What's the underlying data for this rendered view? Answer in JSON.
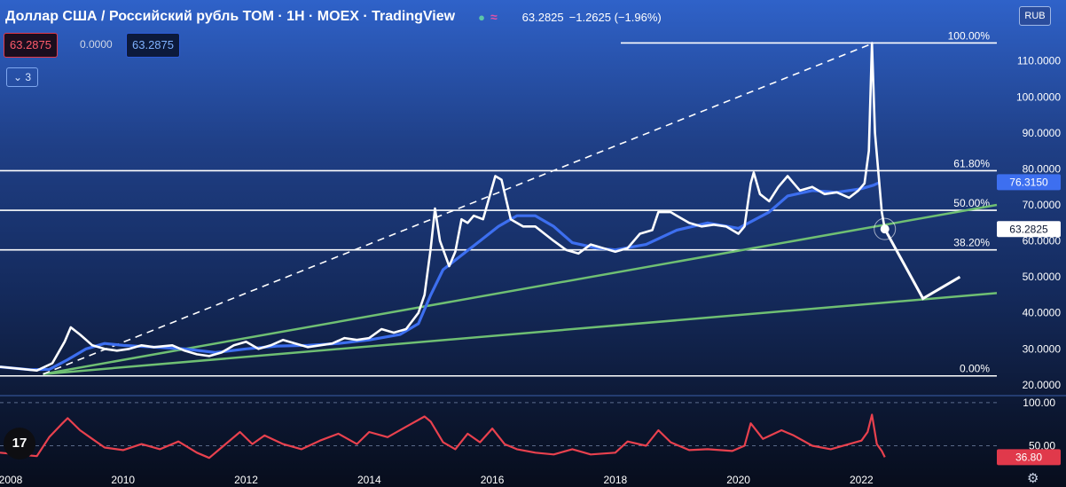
{
  "header": {
    "title": "Доллар США / Российский рубль TOM · 1Н · MOEX · TradingView",
    "quote": "63.2825",
    "change": "−1.2625 (−1.96%)",
    "dot_icon": "status-dot-icon",
    "indicator_icon": "wave-icon"
  },
  "trade": {
    "bid": "63.2875",
    "spread": "0.0000",
    "ask": "63.2875"
  },
  "indicators_collapse": {
    "count": "3"
  },
  "currency_label": "RUB",
  "price_axis": {
    "ticks": [
      "110.0000",
      "100.0000",
      "90.0000",
      "80.0000",
      "70.0000",
      "60.0000",
      "50.0000",
      "40.0000",
      "30.0000",
      "20.0000"
    ],
    "badges": {
      "ma": "76.3150",
      "last": "63.2825"
    }
  },
  "rsi_axis": {
    "ticks": [
      "100.00",
      "50.00"
    ],
    "badge": "36.80"
  },
  "colors": {
    "price": "#ffffff",
    "ma": "#3d6ff0",
    "trend": "#6fbf73",
    "rsi": "#e8414e",
    "label_red": "#e0394b"
  },
  "chart_data": [
    {
      "type": "line",
      "title": "Доллар США / Российский рубль TOM",
      "xlabel": "",
      "ylabel": "",
      "x_ticks": [
        "2008",
        "2010",
        "2012",
        "2014",
        "2016",
        "2018",
        "2020",
        "2022"
      ],
      "xlim": [
        2008.0,
        2024.2
      ],
      "ylim": [
        18,
        122
      ],
      "series": [
        {
          "values": [
            [
              2008.0,
              25
            ],
            [
              2008.3,
              24.5
            ],
            [
              2008.6,
              24
            ],
            [
              2008.85,
              26
            ],
            [
              2009.05,
              32
            ],
            [
              2009.15,
              36
            ],
            [
              2009.3,
              34
            ],
            [
              2009.5,
              31
            ],
            [
              2009.7,
              30
            ],
            [
              2009.9,
              29.5
            ],
            [
              2010.1,
              30
            ],
            [
              2010.3,
              31
            ],
            [
              2010.5,
              30.5
            ],
            [
              2010.8,
              31
            ],
            [
              2011.0,
              29.5
            ],
            [
              2011.2,
              28.5
            ],
            [
              2011.4,
              28
            ],
            [
              2011.6,
              29
            ],
            [
              2011.8,
              31
            ],
            [
              2012.0,
              32
            ],
            [
              2012.2,
              30
            ],
            [
              2012.4,
              31
            ],
            [
              2012.6,
              32.5
            ],
            [
              2012.8,
              31.5
            ],
            [
              2013.0,
              30.5
            ],
            [
              2013.2,
              31
            ],
            [
              2013.4,
              31.5
            ],
            [
              2013.6,
              33
            ],
            [
              2013.8,
              32.5
            ],
            [
              2014.0,
              33
            ],
            [
              2014.2,
              35.5
            ],
            [
              2014.4,
              34.5
            ],
            [
              2014.6,
              35.5
            ],
            [
              2014.8,
              40
            ],
            [
              2014.9,
              45
            ],
            [
              2015.0,
              58
            ],
            [
              2015.07,
              69
            ],
            [
              2015.15,
              60
            ],
            [
              2015.3,
              53
            ],
            [
              2015.4,
              57
            ],
            [
              2015.5,
              66
            ],
            [
              2015.6,
              65
            ],
            [
              2015.7,
              67
            ],
            [
              2015.85,
              66
            ],
            [
              2016.05,
              78
            ],
            [
              2016.15,
              77
            ],
            [
              2016.3,
              66
            ],
            [
              2016.5,
              64
            ],
            [
              2016.7,
              64
            ],
            [
              2016.85,
              62
            ],
            [
              2017.0,
              60
            ],
            [
              2017.2,
              57.5
            ],
            [
              2017.4,
              56.5
            ],
            [
              2017.6,
              59
            ],
            [
              2017.8,
              58
            ],
            [
              2018.0,
              57
            ],
            [
              2018.2,
              58
            ],
            [
              2018.4,
              62
            ],
            [
              2018.6,
              63
            ],
            [
              2018.7,
              68
            ],
            [
              2018.9,
              68
            ],
            [
              2019.0,
              67
            ],
            [
              2019.2,
              65
            ],
            [
              2019.4,
              64
            ],
            [
              2019.6,
              64.5
            ],
            [
              2019.8,
              64
            ],
            [
              2020.0,
              62
            ],
            [
              2020.1,
              64
            ],
            [
              2020.2,
              76
            ],
            [
              2020.25,
              79
            ],
            [
              2020.35,
              73
            ],
            [
              2020.5,
              71
            ],
            [
              2020.65,
              75
            ],
            [
              2020.8,
              78
            ],
            [
              2020.9,
              76
            ],
            [
              2021.0,
              74
            ],
            [
              2021.2,
              75
            ],
            [
              2021.4,
              73
            ],
            [
              2021.6,
              73.5
            ],
            [
              2021.8,
              72
            ],
            [
              2021.95,
              74
            ],
            [
              2022.05,
              76
            ],
            [
              2022.12,
              85
            ],
            [
              2022.17,
              115
            ],
            [
              2022.22,
              90
            ],
            [
              2022.28,
              78
            ],
            [
              2022.33,
              68
            ],
            [
              2022.38,
              63.3
            ]
          ]
        },
        {
          "values": [
            [
              2008.0,
              25
            ],
            [
              2008.5,
              24.2
            ],
            [
              2008.8,
              24.3
            ],
            [
              2009.1,
              27
            ],
            [
              2009.4,
              30
            ],
            [
              2009.7,
              31.5
            ],
            [
              2010.0,
              31
            ],
            [
              2010.5,
              30.5
            ],
            [
              2011.0,
              30
            ],
            [
              2011.5,
              29
            ],
            [
              2012.0,
              30
            ],
            [
              2012.5,
              30.8
            ],
            [
              2013.0,
              31
            ],
            [
              2013.5,
              31.5
            ],
            [
              2014.0,
              32.5
            ],
            [
              2014.5,
              34
            ],
            [
              2014.8,
              37
            ],
            [
              2015.0,
              45
            ],
            [
              2015.2,
              52
            ],
            [
              2015.5,
              56
            ],
            [
              2015.8,
              60
            ],
            [
              2016.1,
              64
            ],
            [
              2016.4,
              67
            ],
            [
              2016.7,
              67
            ],
            [
              2017.0,
              64
            ],
            [
              2017.3,
              59.5
            ],
            [
              2017.7,
              58
            ],
            [
              2018.0,
              57.5
            ],
            [
              2018.5,
              59
            ],
            [
              2019.0,
              63
            ],
            [
              2019.5,
              65
            ],
            [
              2020.0,
              63.5
            ],
            [
              2020.5,
              68
            ],
            [
              2020.8,
              72.5
            ],
            [
              2021.2,
              74
            ],
            [
              2021.6,
              73.5
            ],
            [
              2022.0,
              74.5
            ],
            [
              2022.2,
              75.5
            ],
            [
              2022.3,
              76.3
            ]
          ]
        }
      ]
    },
    {
      "type": "line",
      "ylim": [
        30,
        104
      ],
      "series": [
        {
          "values": [
            [
              2008.0,
              42
            ],
            [
              2008.3,
              40
            ],
            [
              2008.6,
              38
            ],
            [
              2008.8,
              60
            ],
            [
              2009.0,
              75
            ],
            [
              2009.1,
              82
            ],
            [
              2009.3,
              68
            ],
            [
              2009.5,
              58
            ],
            [
              2009.7,
              48
            ],
            [
              2010.0,
              45
            ],
            [
              2010.3,
              52
            ],
            [
              2010.6,
              46
            ],
            [
              2010.9,
              55
            ],
            [
              2011.2,
              42
            ],
            [
              2011.4,
              36
            ],
            [
              2011.6,
              48
            ],
            [
              2011.9,
              66
            ],
            [
              2012.1,
              52
            ],
            [
              2012.3,
              62
            ],
            [
              2012.6,
              52
            ],
            [
              2012.9,
              46
            ],
            [
              2013.2,
              56
            ],
            [
              2013.5,
              64
            ],
            [
              2013.8,
              52
            ],
            [
              2014.0,
              66
            ],
            [
              2014.3,
              60
            ],
            [
              2014.6,
              72
            ],
            [
              2014.9,
              84
            ],
            [
              2015.0,
              78
            ],
            [
              2015.2,
              54
            ],
            [
              2015.4,
              46
            ],
            [
              2015.6,
              64
            ],
            [
              2015.8,
              54
            ],
            [
              2016.0,
              70
            ],
            [
              2016.2,
              52
            ],
            [
              2016.4,
              46
            ],
            [
              2016.7,
              42
            ],
            [
              2017.0,
              40
            ],
            [
              2017.3,
              46
            ],
            [
              2017.6,
              40
            ],
            [
              2018.0,
              42
            ],
            [
              2018.2,
              55
            ],
            [
              2018.5,
              50
            ],
            [
              2018.7,
              68
            ],
            [
              2018.9,
              54
            ],
            [
              2019.2,
              45
            ],
            [
              2019.5,
              46
            ],
            [
              2019.9,
              44
            ],
            [
              2020.1,
              50
            ],
            [
              2020.2,
              76
            ],
            [
              2020.4,
              58
            ],
            [
              2020.7,
              68
            ],
            [
              2020.9,
              62
            ],
            [
              2021.2,
              50
            ],
            [
              2021.5,
              46
            ],
            [
              2021.8,
              52
            ],
            [
              2022.0,
              56
            ],
            [
              2022.1,
              66
            ],
            [
              2022.17,
              86
            ],
            [
              2022.25,
              52
            ],
            [
              2022.33,
              44
            ],
            [
              2022.38,
              36.8
            ]
          ]
        }
      ],
      "levels": [
        100,
        50
      ]
    }
  ],
  "annotations": {
    "fib_levels": [
      {
        "label": "100.00%",
        "value": 115
      },
      {
        "label": "61.80%",
        "value": 79.5
      },
      {
        "label": "50.00%",
        "value": 68.5
      },
      {
        "label": "38.20%",
        "value": 57.5
      },
      {
        "label": "0.00%",
        "value": 22.5
      }
    ],
    "trend_lines": [
      [
        [
          2008.7,
          23
        ],
        [
          2024.2,
          70
        ]
      ],
      [
        [
          2008.7,
          23
        ],
        [
          2024.2,
          45.5
        ]
      ]
    ],
    "dashed_line": [
      [
        2008.7,
        23
      ],
      [
        2022.2,
        115
      ]
    ],
    "arrow": [
      [
        2022.38,
        63.3
      ],
      [
        2023.0,
        44
      ],
      [
        2023.6,
        50
      ]
    ],
    "last_point_circle": [
      2022.38,
      63.3
    ]
  }
}
